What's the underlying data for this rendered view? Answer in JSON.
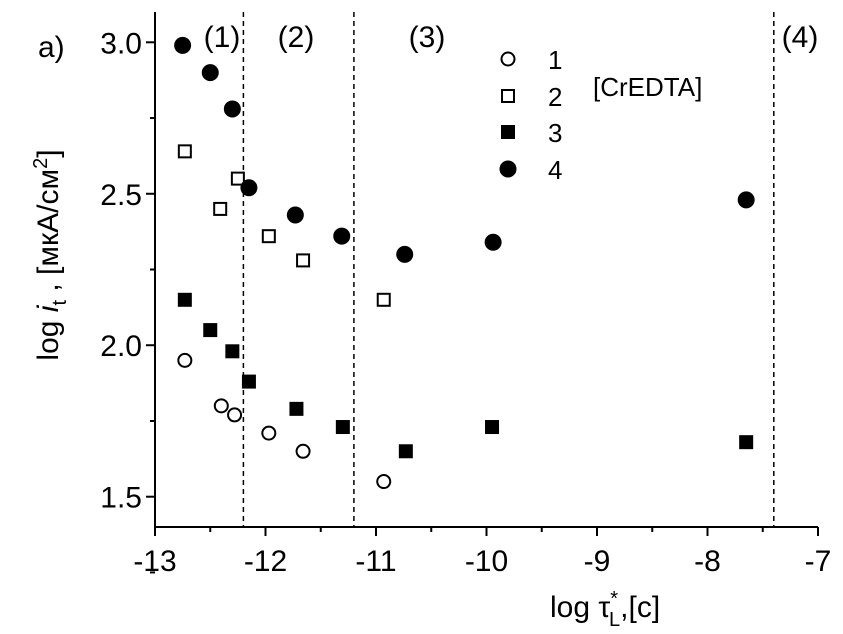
{
  "chart_data": {
    "type": "scatter",
    "panel_label": "a)",
    "xlabel": "log τ*L,[c]",
    "ylabel": "log it , [мкА/см2]",
    "xlim": [
      -13,
      -7
    ],
    "ylim": [
      1.4,
      3.1
    ],
    "x_ticks": [
      "-13",
      "-12",
      "-11",
      "-10",
      "-9",
      "-8",
      "-7"
    ],
    "y_ticks": [
      "1.5",
      "2.0",
      "2.5",
      "3.0"
    ],
    "legend_title": "[CrEDTA]",
    "legend_placement": "top-right",
    "region_boundaries": [
      -12.2,
      -11.2,
      -7.4
    ],
    "regions": [
      "(1)",
      "(2)",
      "(3)",
      "(4)"
    ],
    "series": [
      {
        "name": "1",
        "marker": "open-circle",
        "points": [
          [
            -12.73,
            1.95
          ],
          [
            -12.4,
            1.8
          ],
          [
            -12.28,
            1.77
          ],
          [
            -11.97,
            1.71
          ],
          [
            -11.66,
            1.65
          ],
          [
            -10.93,
            1.55
          ]
        ]
      },
      {
        "name": "2",
        "marker": "open-square",
        "points": [
          [
            -12.73,
            2.64
          ],
          [
            -12.41,
            2.45
          ],
          [
            -12.25,
            2.55
          ],
          [
            -11.97,
            2.36
          ],
          [
            -11.66,
            2.28
          ],
          [
            -10.93,
            2.15
          ]
        ]
      },
      {
        "name": "3",
        "marker": "filled-square",
        "points": [
          [
            -12.73,
            2.15
          ],
          [
            -12.5,
            2.05
          ],
          [
            -12.3,
            1.98
          ],
          [
            -12.15,
            1.88
          ],
          [
            -11.72,
            1.79
          ],
          [
            -11.3,
            1.73
          ],
          [
            -10.73,
            1.65
          ],
          [
            -9.95,
            1.73
          ],
          [
            -7.65,
            1.68
          ]
        ]
      },
      {
        "name": "4",
        "marker": "filled-circle",
        "points": [
          [
            -12.75,
            2.99
          ],
          [
            -12.5,
            2.9
          ],
          [
            -12.3,
            2.78
          ],
          [
            -12.15,
            2.52
          ],
          [
            -11.73,
            2.43
          ],
          [
            -11.31,
            2.36
          ],
          [
            -10.74,
            2.3
          ],
          [
            -9.94,
            2.34
          ],
          [
            -7.65,
            2.48
          ]
        ]
      }
    ]
  }
}
